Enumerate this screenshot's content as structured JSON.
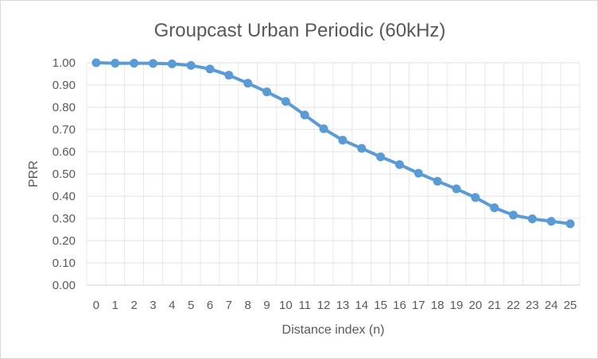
{
  "chart_data": {
    "type": "line",
    "title": "Groupcast Urban Periodic (60kHz)",
    "xlabel": "Distance index (n)",
    "ylabel": "PRR",
    "categories": [
      "0",
      "1",
      "2",
      "3",
      "4",
      "5",
      "6",
      "7",
      "8",
      "9",
      "10",
      "11",
      "12",
      "13",
      "14",
      "15",
      "16",
      "17",
      "18",
      "19",
      "20",
      "21",
      "22",
      "23",
      "24",
      "25"
    ],
    "series": [
      {
        "values": [
          1.0,
          0.998,
          0.998,
          0.997,
          0.995,
          0.988,
          0.972,
          0.944,
          0.908,
          0.869,
          0.826,
          0.765,
          0.703,
          0.652,
          0.615,
          0.577,
          0.542,
          0.503,
          0.467,
          0.433,
          0.394,
          0.348,
          0.315,
          0.298,
          0.287,
          0.276
        ],
        "color": "#5b9bd5"
      }
    ],
    "ylim": [
      0,
      1.0
    ],
    "yticks": [
      "0.00",
      "0.10",
      "0.20",
      "0.30",
      "0.40",
      "0.50",
      "0.60",
      "0.70",
      "0.80",
      "0.90",
      "1.00"
    ],
    "grid": true,
    "legend": "none"
  }
}
